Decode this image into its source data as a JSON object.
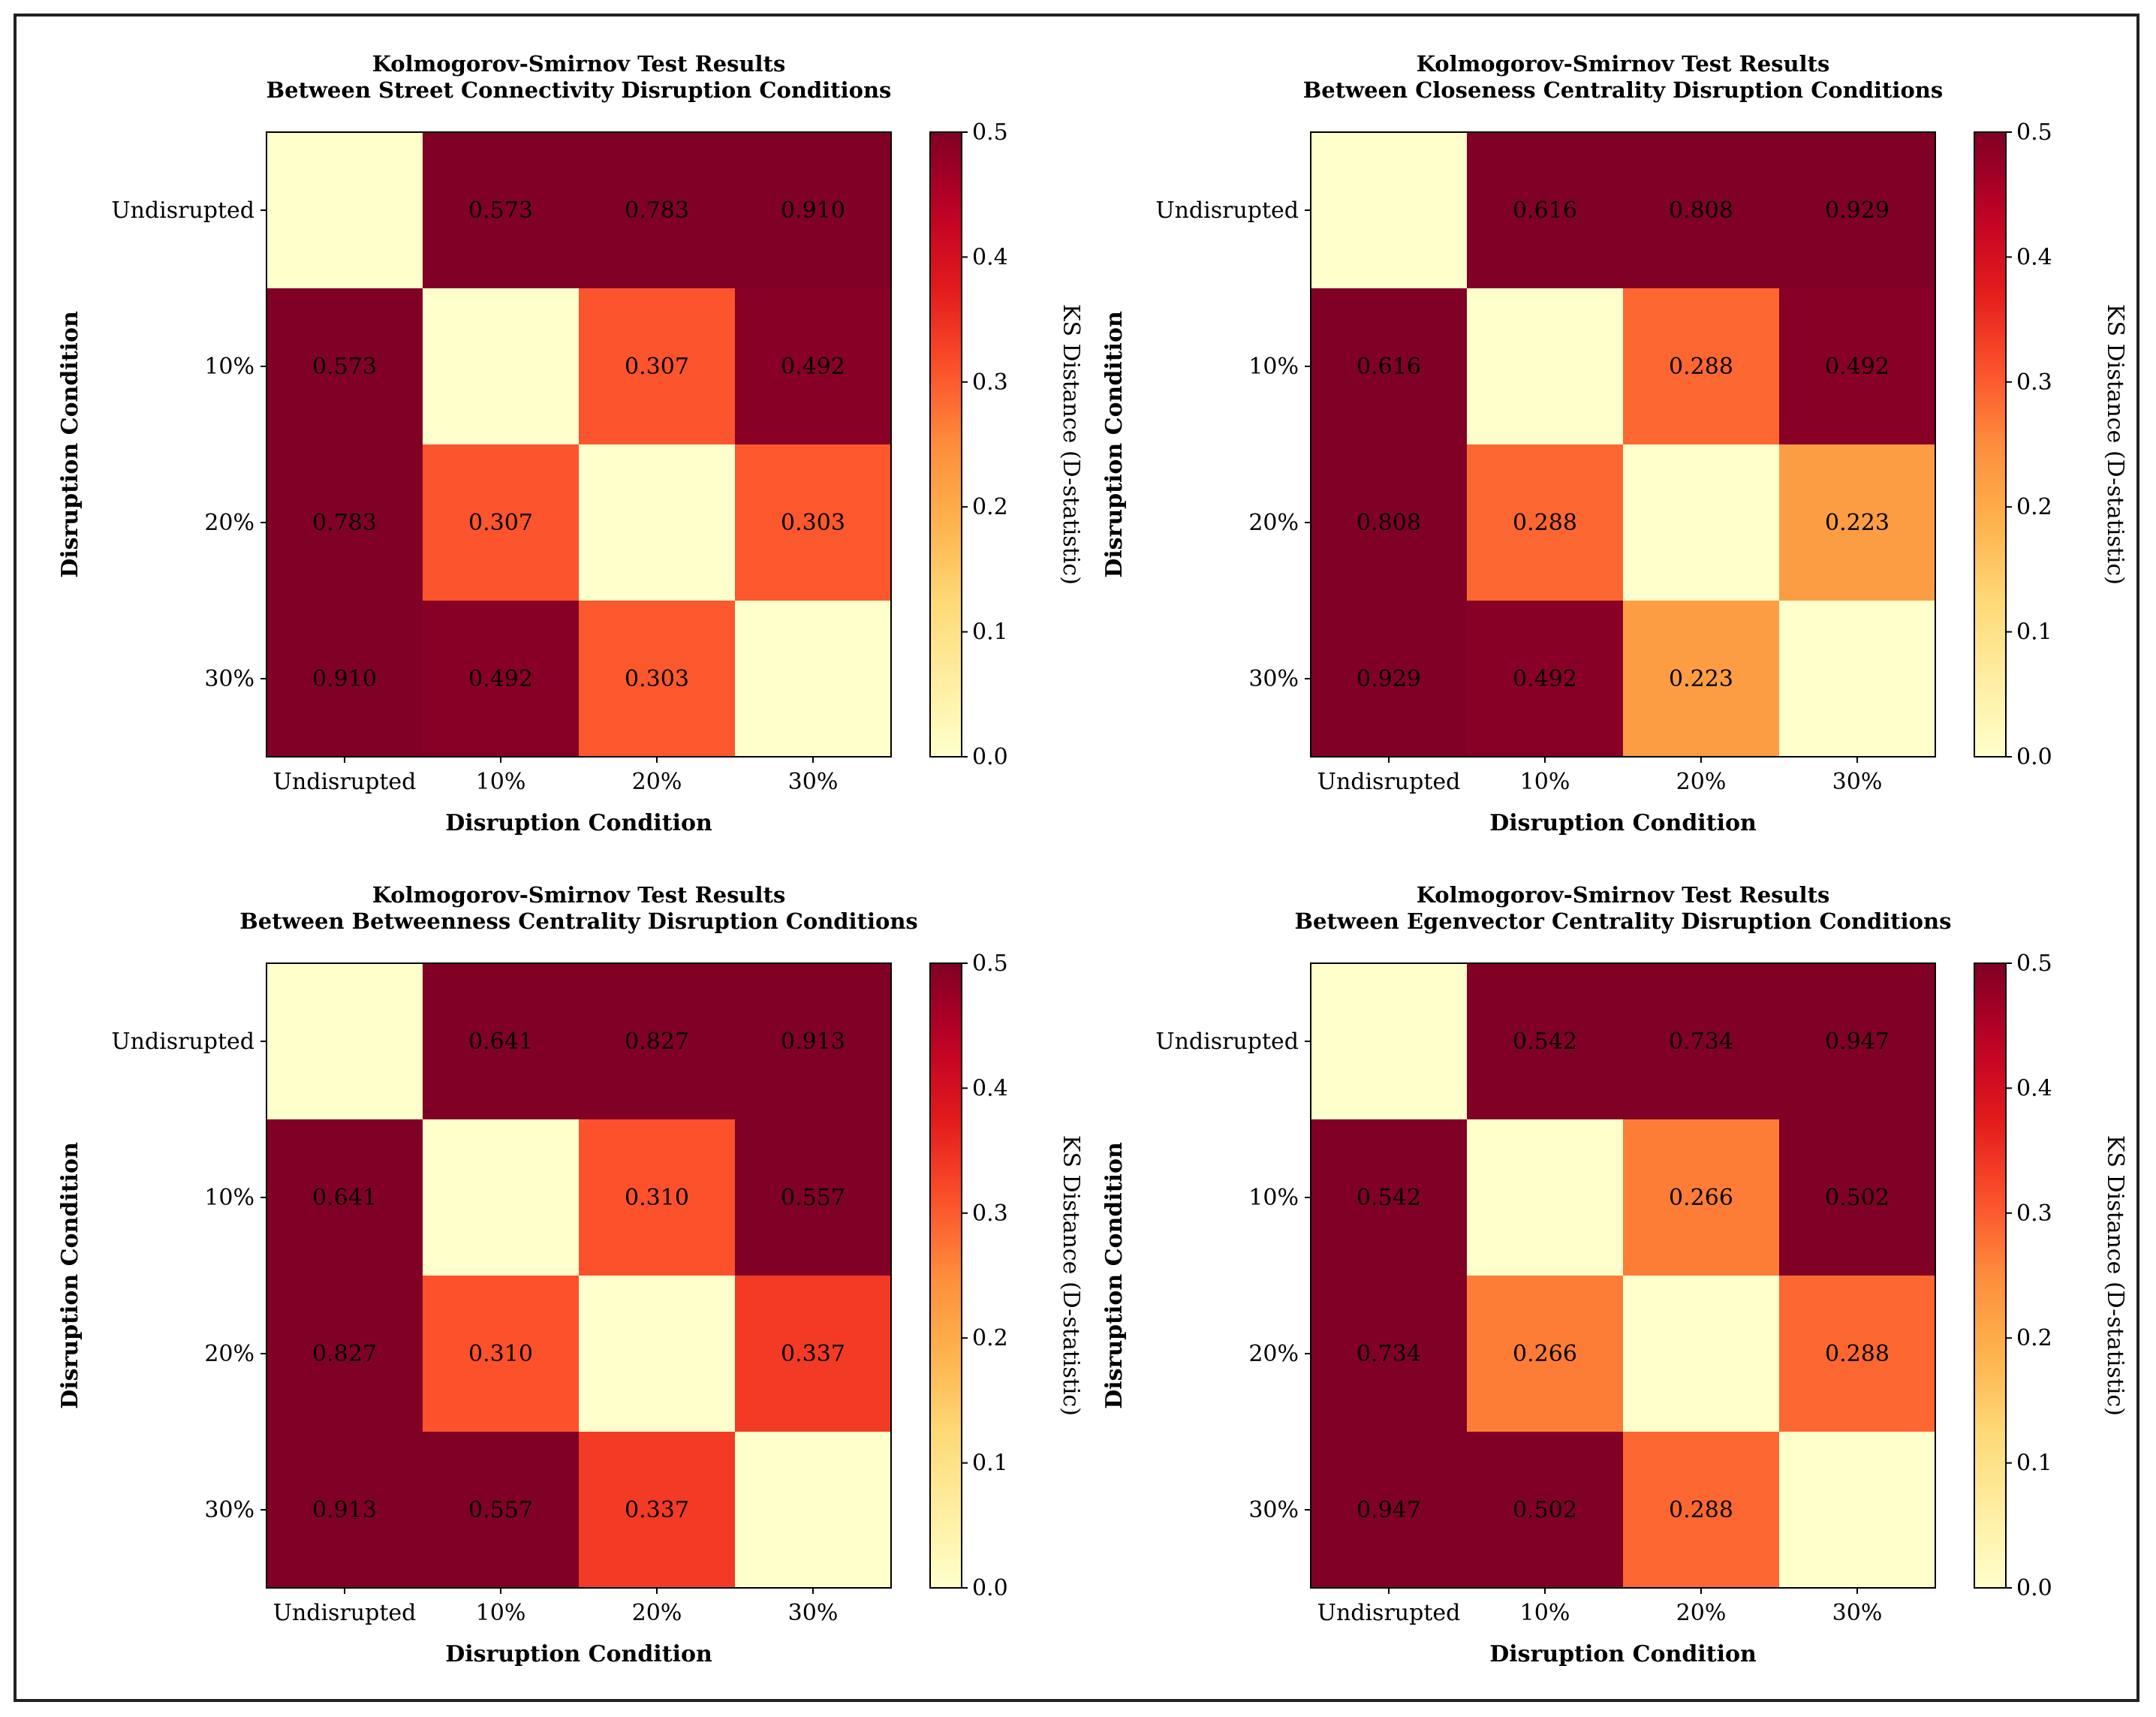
{
  "chart_data": [
    {
      "type": "heatmap",
      "title_line1": "Kolmogorov-Smirnov Test Results",
      "title_line2": "Between Street Connectivity Disruption Conditions",
      "xlabel": "Disruption Condition",
      "ylabel": "Disruption Condition",
      "categories": [
        "Undisrupted",
        "10%",
        "20%",
        "30%"
      ],
      "values": [
        [
          null,
          0.573,
          0.783,
          0.91
        ],
        [
          0.573,
          null,
          0.307,
          0.492
        ],
        [
          0.783,
          0.307,
          null,
          0.303
        ],
        [
          0.91,
          0.492,
          0.303,
          null
        ]
      ],
      "labels": [
        [
          "",
          "0.573",
          "0.783",
          "0.910"
        ],
        [
          "0.573",
          "",
          "0.307",
          "0.492"
        ],
        [
          "0.783",
          "0.307",
          "",
          "0.303"
        ],
        [
          "0.910",
          "0.492",
          "0.303",
          ""
        ]
      ],
      "colorbar": {
        "label": "KS Distance (D-statistic)",
        "range": [
          0.0,
          0.5
        ],
        "ticks": [
          "0.0",
          "0.1",
          "0.2",
          "0.3",
          "0.4",
          "0.5"
        ],
        "colormap": "YlOrRd"
      }
    },
    {
      "type": "heatmap",
      "title_line1": "Kolmogorov-Smirnov Test Results",
      "title_line2": "Between Closeness Centrality Disruption Conditions",
      "xlabel": "Disruption Condition",
      "ylabel": "Disruption Condition",
      "categories": [
        "Undisrupted",
        "10%",
        "20%",
        "30%"
      ],
      "values": [
        [
          null,
          0.616,
          0.808,
          0.929
        ],
        [
          0.616,
          null,
          0.288,
          0.492
        ],
        [
          0.808,
          0.288,
          null,
          0.223
        ],
        [
          0.929,
          0.492,
          0.223,
          null
        ]
      ],
      "labels": [
        [
          "",
          "0.616",
          "0.808",
          "0.929"
        ],
        [
          "0.616",
          "",
          "0.288",
          "0.492"
        ],
        [
          "0.808",
          "0.288",
          "",
          "0.223"
        ],
        [
          "0.929",
          "0.492",
          "0.223",
          ""
        ]
      ],
      "colorbar": {
        "label": "KS Distance (D-statistic)",
        "range": [
          0.0,
          0.5
        ],
        "ticks": [
          "0.0",
          "0.1",
          "0.2",
          "0.3",
          "0.4",
          "0.5"
        ],
        "colormap": "YlOrRd"
      }
    },
    {
      "type": "heatmap",
      "title_line1": "Kolmogorov-Smirnov Test Results",
      "title_line2": "Between Betweenness Centrality Disruption Conditions",
      "xlabel": "Disruption Condition",
      "ylabel": "Disruption Condition",
      "categories": [
        "Undisrupted",
        "10%",
        "20%",
        "30%"
      ],
      "values": [
        [
          null,
          0.641,
          0.827,
          0.913
        ],
        [
          0.641,
          null,
          0.31,
          0.557
        ],
        [
          0.827,
          0.31,
          null,
          0.337
        ],
        [
          0.913,
          0.557,
          0.337,
          null
        ]
      ],
      "labels": [
        [
          "",
          "0.641",
          "0.827",
          "0.913"
        ],
        [
          "0.641",
          "",
          "0.310",
          "0.557"
        ],
        [
          "0.827",
          "0.310",
          "",
          "0.337"
        ],
        [
          "0.913",
          "0.557",
          "0.337",
          ""
        ]
      ],
      "colorbar": {
        "label": "KS Distance (D-statistic)",
        "range": [
          0.0,
          0.5
        ],
        "ticks": [
          "0.0",
          "0.1",
          "0.2",
          "0.3",
          "0.4",
          "0.5"
        ],
        "colormap": "YlOrRd"
      }
    },
    {
      "type": "heatmap",
      "title_line1": "Kolmogorov-Smirnov Test Results",
      "title_line2": "Between Egenvector Centrality Disruption Conditions",
      "xlabel": "Disruption Condition",
      "ylabel": "Disruption Condition",
      "categories": [
        "Undisrupted",
        "10%",
        "20%",
        "30%"
      ],
      "values": [
        [
          null,
          0.542,
          0.734,
          0.947
        ],
        [
          0.542,
          null,
          0.266,
          0.502
        ],
        [
          0.734,
          0.266,
          null,
          0.288
        ],
        [
          0.947,
          0.502,
          0.288,
          null
        ]
      ],
      "labels": [
        [
          "",
          "0.542",
          "0.734",
          "0.947"
        ],
        [
          "0.542",
          "",
          "0.266",
          "0.502"
        ],
        [
          "0.734",
          "0.266",
          "",
          "0.288"
        ],
        [
          "0.947",
          "0.502",
          "0.288",
          ""
        ]
      ],
      "colorbar": {
        "label": "KS Distance (D-statistic)",
        "range": [
          0.0,
          0.5
        ],
        "ticks": [
          "0.0",
          "0.1",
          "0.2",
          "0.3",
          "0.4",
          "0.5"
        ],
        "colormap": "YlOrRd"
      }
    }
  ]
}
